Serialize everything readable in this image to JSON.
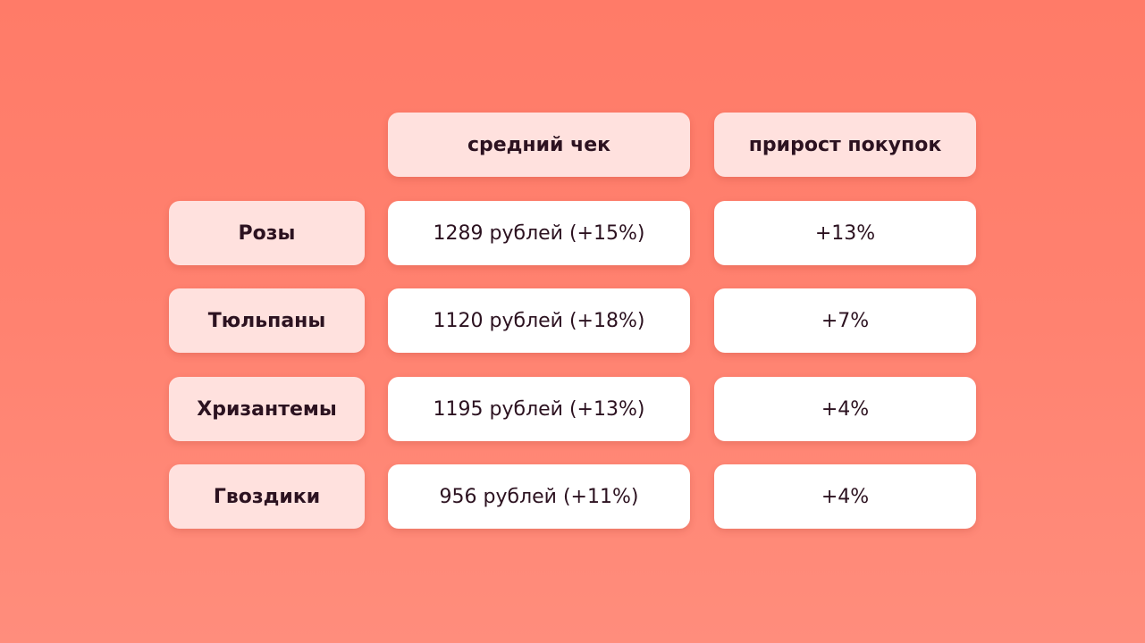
{
  "chart_data": {
    "type": "table",
    "columns": [
      "",
      "средний чек",
      "прирост покупок"
    ],
    "rows": [
      {
        "label": "Розы",
        "avg_check": "1289 рублей (+15%)",
        "growth": "+13%"
      },
      {
        "label": "Тюльпаны",
        "avg_check": "1120 рублей (+18%)",
        "growth": "+7%"
      },
      {
        "label": "Хризантемы",
        "avg_check": "1195 рублей (+13%)",
        "growth": "+4%"
      },
      {
        "label": "Гвоздики",
        "avg_check": "956 рублей (+11%)",
        "growth": "+4%"
      }
    ]
  },
  "colors": {
    "background": "#ff7f6c",
    "header_cell": "#ffe1de",
    "value_cell": "#ffffff",
    "text": "#2c1220"
  }
}
